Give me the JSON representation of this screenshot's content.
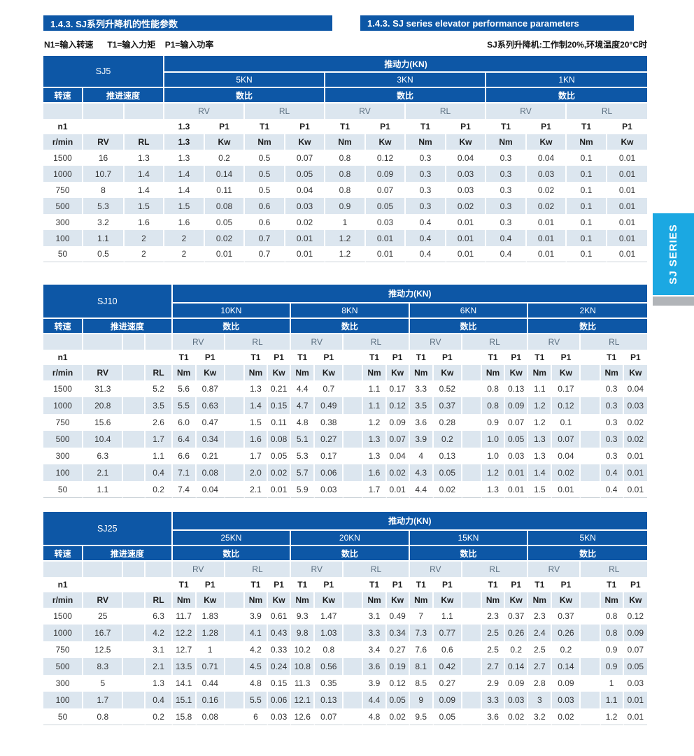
{
  "header": {
    "title_cn": "1.4.3. SJ系列升降机的性能参数",
    "title_en": "1.4.3. SJ series elevator performance parameters",
    "note_left": "N1=输入转速      T1=输入力矩    P1=输入功率",
    "note_right": "SJ系列升降机:工作制20%,环境温度20°C时"
  },
  "side_tab": {
    "label": "SJ SERIES"
  },
  "colors": {
    "header_blue": "#0d57a6",
    "row_light": "#dce6ef",
    "tab_cyan": "#1ba8e2",
    "gray_bar": "#b1b4b8"
  },
  "labels": {
    "thrust": "推动力(KN)",
    "speed": "转速",
    "feed_speed": "推进速度",
    "ratio": "数比",
    "rv": "RV",
    "rl": "RL",
    "n1": "n1",
    "r_min": "r/min",
    "t1": "T1",
    "p1": "P1",
    "nm": "Nm",
    "kw": "Kw"
  },
  "tables": [
    {
      "name": "SJ5",
      "layout": "plain",
      "kn_groups": [
        "5KN",
        "3KN",
        "1KN"
      ],
      "head_row1": [
        "1.3",
        "P1",
        "T1",
        "P1",
        "T1",
        "P1",
        "T1",
        "P1",
        "T1",
        "P1",
        "T1",
        "P1"
      ],
      "head_row2": [
        "1.3",
        "Kw",
        "Nm",
        "Kw",
        "Nm",
        "Kw",
        "Nm",
        "Kw",
        "Nm",
        "Kw",
        "Nm",
        "Kw"
      ],
      "rows": [
        [
          "1500",
          "16",
          "1.3",
          "1.3",
          "0.2",
          "0.5",
          "0.07",
          "0.8",
          "0.12",
          "0.3",
          "0.04",
          "0.3",
          "0.04",
          "0.1",
          "0.01"
        ],
        [
          "1000",
          "10.7",
          "1.4",
          "1.4",
          "0.14",
          "0.5",
          "0.05",
          "0.8",
          "0.09",
          "0.3",
          "0.03",
          "0.3",
          "0.03",
          "0.1",
          "0.01"
        ],
        [
          "750",
          "8",
          "1.4",
          "1.4",
          "0.11",
          "0.5",
          "0.04",
          "0.8",
          "0.07",
          "0.3",
          "0.03",
          "0.3",
          "0.02",
          "0.1",
          "0.01"
        ],
        [
          "500",
          "5.3",
          "1.5",
          "1.5",
          "0.08",
          "0.6",
          "0.03",
          "0.9",
          "0.05",
          "0.3",
          "0.02",
          "0.3",
          "0.02",
          "0.1",
          "0.01"
        ],
        [
          "300",
          "3.2",
          "1.6",
          "1.6",
          "0.05",
          "0.6",
          "0.02",
          "1",
          "0.03",
          "0.4",
          "0.01",
          "0.3",
          "0.01",
          "0.1",
          "0.01"
        ],
        [
          "100",
          "1.1",
          "2",
          "2",
          "0.02",
          "0.7",
          "0.01",
          "1.2",
          "0.01",
          "0.4",
          "0.01",
          "0.4",
          "0.01",
          "0.1",
          "0.01"
        ],
        [
          "50",
          "0.5",
          "2",
          "2",
          "0.01",
          "0.7",
          "0.01",
          "1.2",
          "0.01",
          "0.4",
          "0.01",
          "0.4",
          "0.01",
          "0.1",
          "0.01"
        ]
      ]
    },
    {
      "name": "SJ10",
      "layout": "spaced",
      "kn_groups": [
        "10KN",
        "8KN",
        "6KN",
        "2KN"
      ],
      "head_row1": [
        "T1",
        "P1",
        "T1",
        "P1",
        "T1",
        "P1",
        "T1",
        "P1",
        "T1",
        "P1",
        "T1",
        "P1",
        "T1",
        "P1",
        "T1",
        "P1"
      ],
      "head_row2": [
        "Nm",
        "Kw",
        "Nm",
        "Kw",
        "Nm",
        "Kw",
        "Nm",
        "Kw",
        "Nm",
        "Kw",
        "Nm",
        "Kw",
        "Nm",
        "Kw",
        "Nm",
        "Kw"
      ],
      "rows": [
        [
          "1500",
          "31.3",
          "5.2",
          "5.6",
          "0.87",
          "1.3",
          "0.21",
          "4.4",
          "0.7",
          "1.1",
          "0.17",
          "3.3",
          "0.52",
          "0.8",
          "0.13",
          "1.1",
          "0.17",
          "0.3",
          "0.04"
        ],
        [
          "1000",
          "20.8",
          "3.5",
          "5.5",
          "0.63",
          "1.4",
          "0.15",
          "4.7",
          "0.49",
          "1.1",
          "0.12",
          "3.5",
          "0.37",
          "0.8",
          "0.09",
          "1.2",
          "0.12",
          "0.3",
          "0.03"
        ],
        [
          "750",
          "15.6",
          "2.6",
          "6.0",
          "0.47",
          "1.5",
          "0.11",
          "4.8",
          "0.38",
          "1.2",
          "0.09",
          "3.6",
          "0.28",
          "0.9",
          "0.07",
          "1.2",
          "0.1",
          "0.3",
          "0.02"
        ],
        [
          "500",
          "10.4",
          "1.7",
          "6.4",
          "0.34",
          "1.6",
          "0.08",
          "5.1",
          "0.27",
          "1.3",
          "0.07",
          "3.9",
          "0.2",
          "1.0",
          "0.05",
          "1.3",
          "0.07",
          "0.3",
          "0.02"
        ],
        [
          "300",
          "6.3",
          "1.1",
          "6.6",
          "0.21",
          "1.7",
          "0.05",
          "5.3",
          "0.17",
          "1.3",
          "0.04",
          "4",
          "0.13",
          "1.0",
          "0.03",
          "1.3",
          "0.04",
          "0.3",
          "0.01"
        ],
        [
          "100",
          "2.1",
          "0.4",
          "7.1",
          "0.08",
          "2.0",
          "0.02",
          "5.7",
          "0.06",
          "1.6",
          "0.02",
          "4.3",
          "0.05",
          "1.2",
          "0.01",
          "1.4",
          "0.02",
          "0.4",
          "0.01"
        ],
        [
          "50",
          "1.1",
          "0.2",
          "7.4",
          "0.04",
          "2.1",
          "0.01",
          "5.9",
          "0.03",
          "1.7",
          "0.01",
          "4.4",
          "0.02",
          "1.3",
          "0.01",
          "1.5",
          "0.01",
          "0.4",
          "0.01"
        ]
      ]
    },
    {
      "name": "SJ25",
      "layout": "spaced",
      "kn_groups": [
        "25KN",
        "20KN",
        "15KN",
        "5KN"
      ],
      "head_row1": [
        "T1",
        "P1",
        "T1",
        "P1",
        "T1",
        "P1",
        "T1",
        "P1",
        "T1",
        "P1",
        "T1",
        "P1",
        "T1",
        "P1",
        "T1",
        "P1"
      ],
      "head_row2": [
        "Nm",
        "Kw",
        "Nm",
        "Kw",
        "Nm",
        "Kw",
        "Nm",
        "Kw",
        "Nm",
        "Kw",
        "Nm",
        "Kw",
        "Nm",
        "Kw",
        "Nm",
        "Kw"
      ],
      "rows": [
        [
          "1500",
          "25",
          "6.3",
          "11.7",
          "1.83",
          "3.9",
          "0.61",
          "9.3",
          "1.47",
          "3.1",
          "0.49",
          "7",
          "1.1",
          "2.3",
          "0.37",
          "2.3",
          "0.37",
          "0.8",
          "0.12"
        ],
        [
          "1000",
          "16.7",
          "4.2",
          "12.2",
          "1.28",
          "4.1",
          "0.43",
          "9.8",
          "1.03",
          "3.3",
          "0.34",
          "7.3",
          "0.77",
          "2.5",
          "0.26",
          "2.4",
          "0.26",
          "0.8",
          "0.09"
        ],
        [
          "750",
          "12.5",
          "3.1",
          "12.7",
          "1",
          "4.2",
          "0.33",
          "10.2",
          "0.8",
          "3.4",
          "0.27",
          "7.6",
          "0.6",
          "2.5",
          "0.2",
          "2.5",
          "0.2",
          "0.9",
          "0.07"
        ],
        [
          "500",
          "8.3",
          "2.1",
          "13.5",
          "0.71",
          "4.5",
          "0.24",
          "10.8",
          "0.56",
          "3.6",
          "0.19",
          "8.1",
          "0.42",
          "2.7",
          "0.14",
          "2.7",
          "0.14",
          "0.9",
          "0.05"
        ],
        [
          "300",
          "5",
          "1.3",
          "14.1",
          "0.44",
          "4.8",
          "0.15",
          "11.3",
          "0.35",
          "3.9",
          "0.12",
          "8.5",
          "0.27",
          "2.9",
          "0.09",
          "2.8",
          "0.09",
          "1",
          "0.03"
        ],
        [
          "100",
          "1.7",
          "0.4",
          "15.1",
          "0.16",
          "5.5",
          "0.06",
          "12.1",
          "0.13",
          "4.4",
          "0.05",
          "9",
          "0.09",
          "3.3",
          "0.03",
          "3",
          "0.03",
          "1.1",
          "0.01"
        ],
        [
          "50",
          "0.8",
          "0.2",
          "15.8",
          "0.08",
          "6",
          "0.03",
          "12.6",
          "0.07",
          "4.8",
          "0.02",
          "9.5",
          "0.05",
          "3.6",
          "0.02",
          "3.2",
          "0.02",
          "1.2",
          "0.01"
        ]
      ]
    }
  ]
}
